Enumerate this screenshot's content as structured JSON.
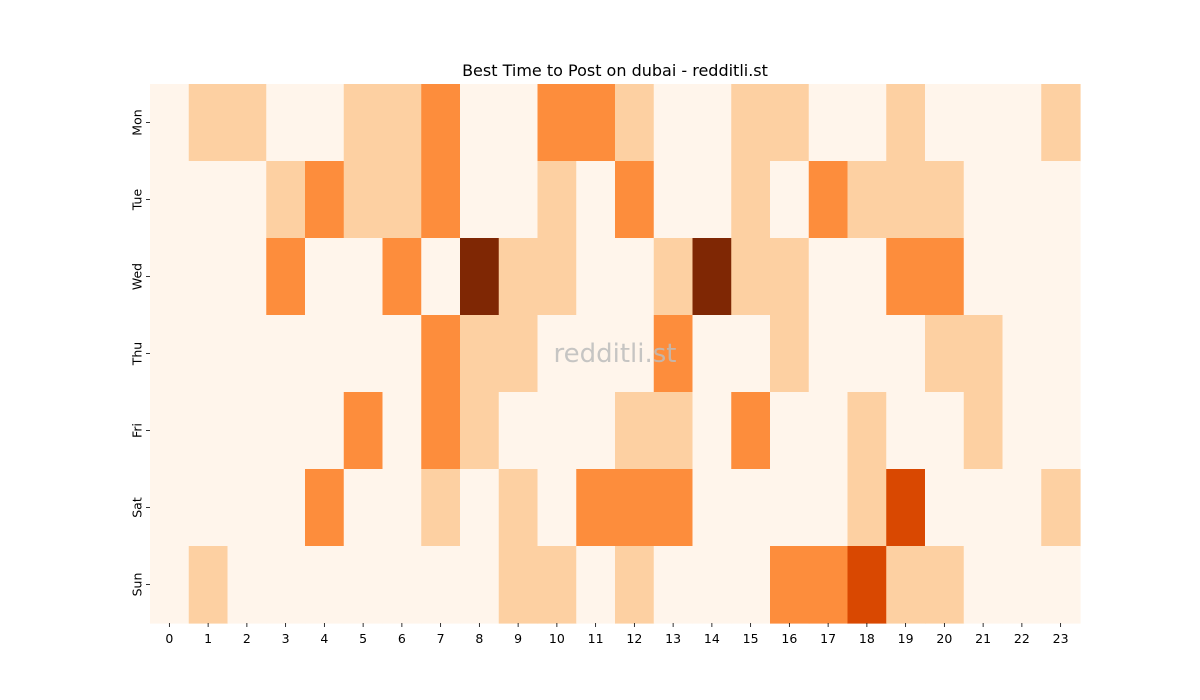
{
  "chart_data": {
    "type": "heatmap",
    "title": "Best Time to Post on dubai - redditli.st",
    "watermark": "redditli.st",
    "xlabel": "",
    "ylabel": "",
    "x_categories": [
      "0",
      "1",
      "2",
      "3",
      "4",
      "5",
      "6",
      "7",
      "8",
      "9",
      "10",
      "11",
      "12",
      "13",
      "14",
      "15",
      "16",
      "17",
      "18",
      "19",
      "20",
      "21",
      "22",
      "23"
    ],
    "y_categories": [
      "Mon",
      "Tue",
      "Wed",
      "Thu",
      "Fri",
      "Sat",
      "Sun"
    ],
    "values": [
      [
        0,
        1,
        1,
        0,
        0,
        1,
        1,
        2,
        0,
        0,
        2,
        2,
        1,
        0,
        0,
        1,
        1,
        0,
        0,
        1,
        0,
        0,
        0,
        1
      ],
      [
        0,
        0,
        0,
        1,
        2,
        1,
        1,
        2,
        0,
        0,
        1,
        0,
        2,
        0,
        0,
        1,
        0,
        2,
        1,
        1,
        1,
        0,
        0,
        0
      ],
      [
        0,
        0,
        0,
        2,
        0,
        0,
        2,
        0,
        4,
        1,
        1,
        0,
        0,
        1,
        4,
        1,
        1,
        0,
        0,
        2,
        2,
        0,
        0,
        0
      ],
      [
        0,
        0,
        0,
        0,
        0,
        0,
        0,
        2,
        1,
        1,
        0,
        0,
        0,
        2,
        0,
        0,
        1,
        0,
        0,
        0,
        1,
        1,
        0,
        0
      ],
      [
        0,
        0,
        0,
        0,
        0,
        2,
        0,
        2,
        1,
        0,
        0,
        0,
        1,
        1,
        0,
        2,
        0,
        0,
        1,
        0,
        0,
        1,
        0,
        0
      ],
      [
        0,
        0,
        0,
        0,
        2,
        0,
        0,
        1,
        0,
        1,
        0,
        2,
        2,
        2,
        0,
        0,
        0,
        0,
        1,
        3,
        0,
        0,
        0,
        1
      ],
      [
        0,
        1,
        0,
        0,
        0,
        0,
        0,
        0,
        0,
        1,
        1,
        0,
        1,
        0,
        0,
        0,
        2,
        2,
        3,
        1,
        1,
        0,
        0,
        0
      ]
    ],
    "colormap": {
      "0": "#fff5eb",
      "1": "#fdd0a2",
      "2": "#fd8d3c",
      "3": "#d94801",
      "4": "#7f2704"
    },
    "colorbar": false,
    "grid": false
  }
}
